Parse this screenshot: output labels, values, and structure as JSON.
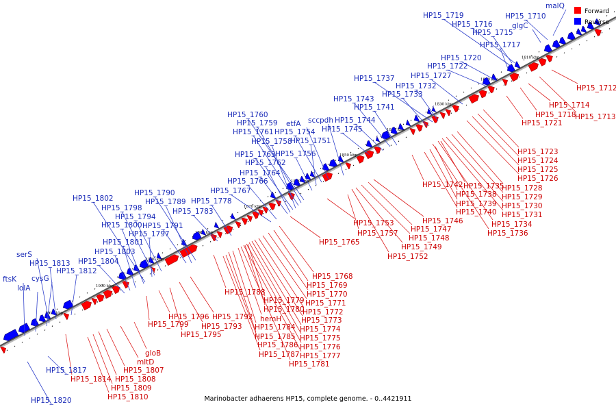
{
  "caption": "Marinobacter adhaerens HP15, complete genome. - 0..4421911",
  "legend": [
    {
      "label": "Forward",
      "color": "#ff0000"
    },
    {
      "label": "Reverse",
      "color": "#0000ff"
    }
  ],
  "colors": {
    "forward": "#ff0000",
    "reverse": "#0000ff",
    "forward_line": "#dd2222",
    "reverse_line": "#3344cc",
    "axis": "#888888"
  },
  "ticks": [
    "1810 kbp",
    "1820 kbp",
    "1830 kbp",
    "1840 kbp",
    "1850 kbp",
    "1860 kbp",
    "1870 kbp",
    "1880 kbp",
    "1890 kbp",
    "1900 kbp",
    "1910 kbp"
  ],
  "reverse_labels": [
    "malQ",
    "HP15_1710",
    "glgC",
    "HP15_1719",
    "HP15_1716",
    "HP15_1715",
    "HP15_1717",
    "HP15_1720",
    "HP15_1722",
    "HP15_1727",
    "HP15_1737",
    "HP15_1732",
    "HP15_1733",
    "HP15_1743",
    "HP15_1741",
    "HP15_1744",
    "HP15_1745",
    "sccpdh",
    "etfA",
    "HP15_1754",
    "HP15_1751",
    "HP15_1760",
    "HP15_1759",
    "HP15_1761",
    "HP15_1758",
    "HP15_1756",
    "HP15_1763",
    "HP15_1762",
    "HP15_1764",
    "HP15_1766",
    "HP15_1767",
    "HP15_1778",
    "HP15_1790",
    "HP15_1789",
    "HP15_1783",
    "HP15_1802",
    "HP15_1798",
    "HP15_1794",
    "HP15_1800",
    "HP15_1791",
    "HP15_1797",
    "HP15_1801",
    "HP15_1803",
    "HP15_1804",
    "HP15_1812",
    "serS",
    "HP15_1813",
    "cysG",
    "ftsK",
    "lolA",
    "HP15_1817",
    "HP15_1820"
  ],
  "forward_labels": [
    "HP15_1712",
    "HP15_1714",
    "HP15_1718",
    "HP15_1713",
    "HP15_1721",
    "HP15_1723",
    "HP15_1724",
    "HP15_1725",
    "HP15_1726",
    "HP15_1742",
    "HP15_1735",
    "HP15_1728",
    "HP15_1738",
    "HP15_1729",
    "HP15_1739",
    "HP15_1730",
    "HP15_1740",
    "HP15_1731",
    "HP15_1746",
    "HP15_1734",
    "HP15_1747",
    "HP15_1736",
    "HP15_1753",
    "HP15_1748",
    "HP15_1757",
    "HP15_1765",
    "HP15_1749",
    "HP15_1752",
    "HP15_1768",
    "HP15_1769",
    "HP15_1770",
    "HP15_1788",
    "HP15_1779",
    "HP15_1771",
    "HP15_1780",
    "HP15_1772",
    "hemH",
    "HP15_1773",
    "HP15_1784",
    "HP15_1774",
    "HP15_1785",
    "HP15_1775",
    "HP15_1786",
    "HP15_1776",
    "HP15_1787",
    "HP15_1777",
    "HP15_1781",
    "HP15_1796",
    "HP15_1792",
    "HP15_1799",
    "HP15_1793",
    "HP15_1795",
    "gloB",
    "mltD",
    "HP15_1807",
    "HP15_1808",
    "HP15_1814",
    "HP15_1809",
    "HP15_1810"
  ]
}
